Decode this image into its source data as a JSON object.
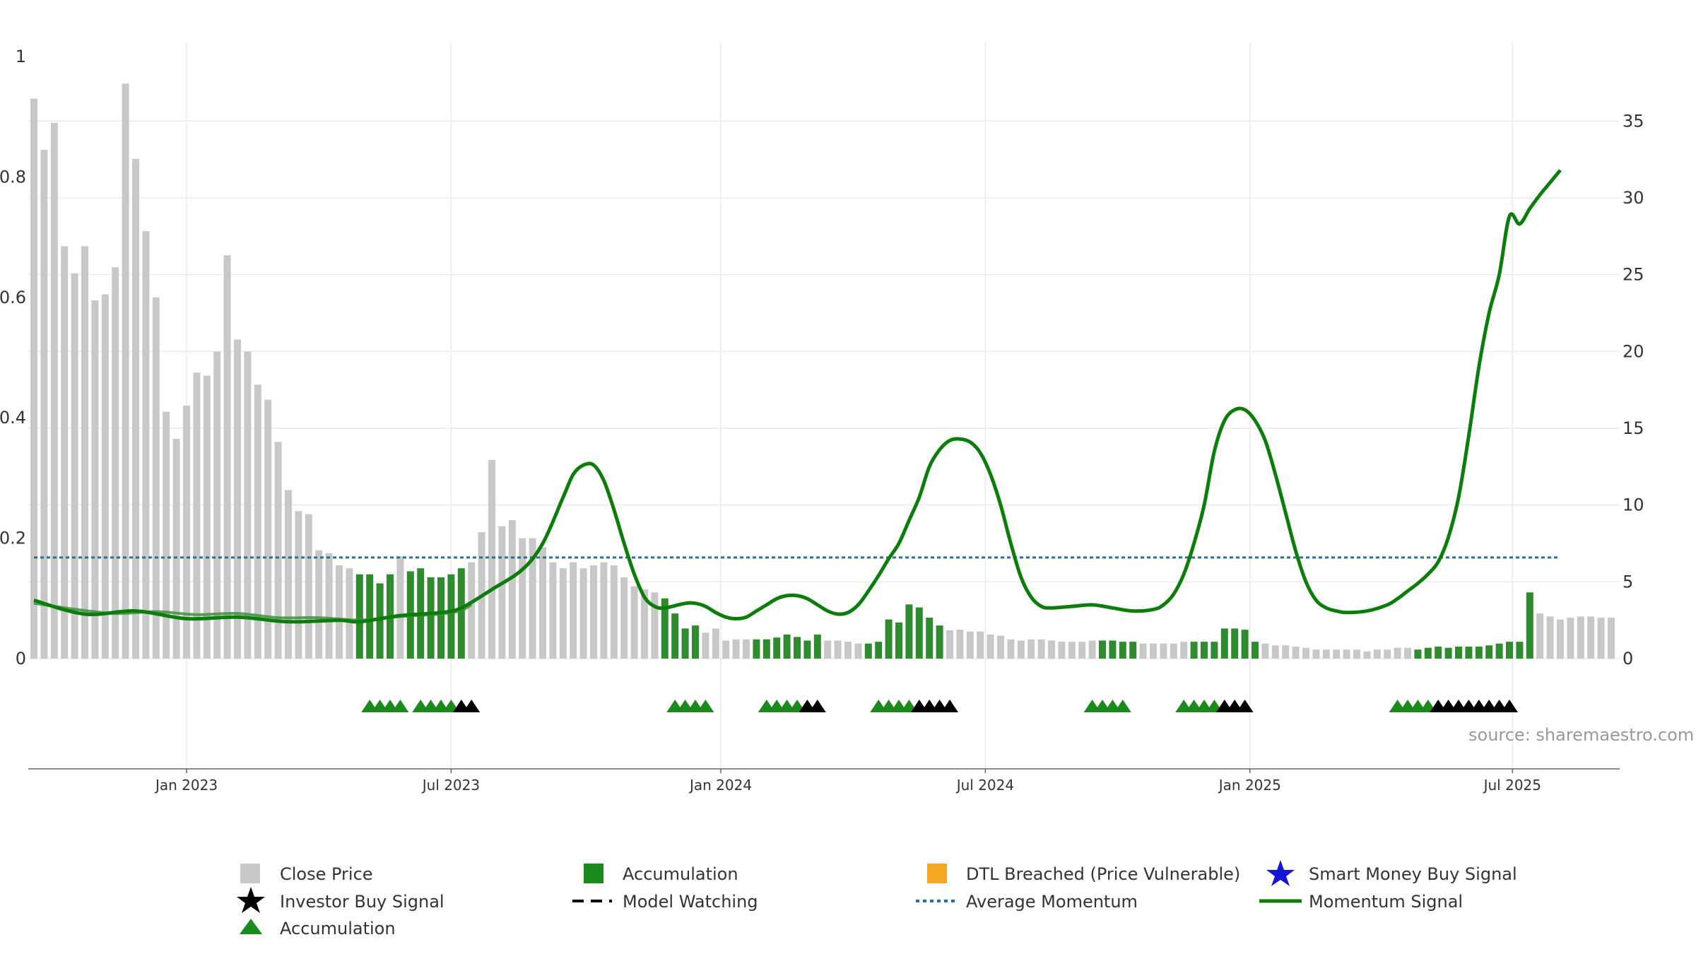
{
  "source_label": "source: sharemaestro.com",
  "colors": {
    "close": "#c8c8c8",
    "accumulation": "#2e8b2e",
    "momentum": "#0a7d0a",
    "avg_momentum": "#2b6f96",
    "investor_signal": "#000000",
    "dtl": "#f5a623",
    "smart_money": "#1515d8",
    "grid": "#ebebeb"
  },
  "legend": {
    "close_price": "Close Price",
    "accumulation": "Accumulation",
    "dtl_breached": "DTL Breached (Price Vulnerable)",
    "smart_money": "Smart Money Buy Signal",
    "investor_buy": "Investor Buy Signal",
    "model_watching": "Model Watching",
    "average_momentum": "Average Momentum",
    "momentum_signal": "Momentum Signal",
    "accumulation_marker": "Accumulation"
  },
  "chart_data": {
    "type": "bar",
    "x_axis": {
      "labels": [
        "Jan 2023",
        "Jul 2023",
        "Jan 2024",
        "Jul 2024",
        "Jan 2025",
        "Jul 2025"
      ],
      "label_weeks": [
        15,
        41,
        67.5,
        93.5,
        119.5,
        145.3
      ]
    },
    "y_left": {
      "ticks": [
        "0",
        "0.2",
        "0.4",
        "0.6",
        "0.8",
        "1"
      ],
      "range": [
        0,
        1
      ]
    },
    "y_right": {
      "ticks": [
        "0",
        "5",
        "10",
        "15",
        "20",
        "25",
        "30",
        "35"
      ],
      "range": [
        0,
        39.2
      ]
    },
    "close_price": {
      "values": [
        0.93,
        0.845,
        0.89,
        0.685,
        0.64,
        0.685,
        0.595,
        0.605,
        0.65,
        0.955,
        0.83,
        0.71,
        0.6,
        0.41,
        0.365,
        0.42,
        0.475,
        0.47,
        0.51,
        0.67,
        0.53,
        0.51,
        0.455,
        0.43,
        0.36,
        0.28,
        0.245,
        0.24,
        0.18,
        0.175,
        0.155,
        0.15,
        0.14,
        0.14,
        0.125,
        0.14,
        0.17,
        0.145,
        0.15,
        0.135,
        0.135,
        0.14,
        0.15,
        0.16,
        0.21,
        0.33,
        0.22,
        0.23,
        0.2,
        0.2,
        0.185,
        0.16,
        0.15,
        0.16,
        0.15,
        0.155,
        0.16,
        0.155,
        0.135,
        0.12,
        0.115,
        0.11,
        0.1,
        0.075,
        0.05,
        0.055,
        0.043,
        0.05,
        0.03,
        0.032,
        0.032,
        0.032,
        0.032,
        0.035,
        0.04,
        0.036,
        0.03,
        0.04,
        0.03,
        0.03,
        0.028,
        0.025,
        0.025,
        0.028,
        0.065,
        0.06,
        0.09,
        0.085,
        0.068,
        0.055,
        0.047,
        0.048,
        0.045,
        0.045,
        0.04,
        0.038,
        0.032,
        0.03,
        0.032,
        0.032,
        0.03,
        0.028,
        0.028,
        0.028,
        0.03,
        0.03,
        0.03,
        0.028,
        0.028,
        0.025,
        0.025,
        0.025,
        0.025,
        0.028,
        0.028,
        0.028,
        0.028,
        0.05,
        0.05,
        0.048,
        0.028,
        0.025,
        0.022,
        0.022,
        0.02,
        0.018,
        0.015,
        0.015,
        0.015,
        0.015,
        0.015,
        0.012,
        0.015,
        0.015,
        0.018,
        0.018,
        0.015,
        0.018,
        0.02,
        0.018,
        0.02,
        0.02,
        0.02,
        0.022,
        0.025,
        0.028,
        0.028,
        0.11,
        0.075,
        0.07,
        0.065,
        0.068,
        0.07,
        0.07,
        0.068,
        0.068
      ],
      "accumulation_ranges": [
        [
          32,
          35
        ],
        [
          37,
          42
        ],
        [
          62,
          65
        ],
        [
          71,
          77
        ],
        [
          82,
          89
        ],
        [
          105,
          108
        ],
        [
          114,
          120
        ],
        [
          136,
          147
        ]
      ]
    },
    "momentum": {
      "right_axis_points": [
        [
          0,
          3.8
        ],
        [
          5,
          2.9
        ],
        [
          10,
          3.1
        ],
        [
          15,
          2.6
        ],
        [
          20,
          2.7
        ],
        [
          25,
          2.4
        ],
        [
          30,
          2.5
        ],
        [
          32,
          2.4
        ],
        [
          36,
          2.8
        ],
        [
          40,
          3.0
        ],
        [
          42,
          3.3
        ],
        [
          45,
          4.5
        ],
        [
          48,
          5.8
        ],
        [
          50,
          7.5
        ],
        [
          52,
          10.5
        ],
        [
          53,
          12
        ],
        [
          54,
          12.6
        ],
        [
          55,
          12.6
        ],
        [
          56,
          11.6
        ],
        [
          57,
          9.7
        ],
        [
          58,
          7.5
        ],
        [
          59,
          5.5
        ],
        [
          60,
          4.0
        ],
        [
          61,
          3.4
        ],
        [
          62,
          3.3
        ],
        [
          64,
          3.6
        ],
        [
          65,
          3.6
        ],
        [
          66,
          3.4
        ],
        [
          67,
          3.0
        ],
        [
          68,
          2.7
        ],
        [
          69,
          2.6
        ],
        [
          70,
          2.7
        ],
        [
          71,
          3.1
        ],
        [
          72,
          3.5
        ],
        [
          73,
          3.9
        ],
        [
          74,
          4.1
        ],
        [
          75,
          4.1
        ],
        [
          76,
          3.9
        ],
        [
          77,
          3.5
        ],
        [
          78,
          3.1
        ],
        [
          79,
          2.9
        ],
        [
          80,
          3.0
        ],
        [
          81,
          3.5
        ],
        [
          82,
          4.4
        ],
        [
          83,
          5.4
        ],
        [
          84,
          6.5
        ],
        [
          85,
          7.5
        ],
        [
          86,
          9.0
        ],
        [
          87,
          10.5
        ],
        [
          88,
          12.5
        ],
        [
          89,
          13.6
        ],
        [
          90,
          14.2
        ],
        [
          91,
          14.3
        ],
        [
          92,
          14.1
        ],
        [
          93,
          13.4
        ],
        [
          94,
          12
        ],
        [
          95,
          10
        ],
        [
          96,
          7.5
        ],
        [
          97,
          5.3
        ],
        [
          98,
          4.0
        ],
        [
          99,
          3.4
        ],
        [
          100,
          3.3
        ],
        [
          102,
          3.4
        ],
        [
          104,
          3.5
        ],
        [
          106,
          3.3
        ],
        [
          108,
          3.1
        ],
        [
          110,
          3.2
        ],
        [
          111,
          3.5
        ],
        [
          112,
          4.2
        ],
        [
          113,
          5.5
        ],
        [
          114,
          7.5
        ],
        [
          115,
          10
        ],
        [
          116,
          13.5
        ],
        [
          117,
          15.5
        ],
        [
          118,
          16.2
        ],
        [
          119,
          16.2
        ],
        [
          120,
          15.5
        ],
        [
          121,
          14.2
        ],
        [
          122,
          12
        ],
        [
          123,
          9.5
        ],
        [
          124,
          7.0
        ],
        [
          125,
          5.0
        ],
        [
          126,
          3.8
        ],
        [
          127,
          3.3
        ],
        [
          128,
          3.1
        ],
        [
          129,
          3.0
        ],
        [
          131,
          3.1
        ],
        [
          133,
          3.5
        ],
        [
          134,
          3.9
        ],
        [
          135,
          4.4
        ],
        [
          136,
          4.9
        ],
        [
          137,
          5.5
        ],
        [
          138,
          6.3
        ],
        [
          139,
          7.9
        ],
        [
          140,
          10.5
        ],
        [
          141,
          14.5
        ],
        [
          142,
          19
        ],
        [
          143,
          22.5
        ],
        [
          144,
          25
        ],
        [
          145,
          28.8
        ],
        [
          146,
          28.3
        ],
        [
          147,
          29.3
        ],
        [
          148,
          30.2
        ],
        [
          149,
          31
        ],
        [
          150,
          31.8
        ]
      ],
      "average_left_axis": 0.168,
      "early_average_points": [
        [
          0,
          0.092
        ],
        [
          4,
          0.082
        ],
        [
          8,
          0.075
        ],
        [
          12,
          0.078
        ],
        [
          16,
          0.073
        ],
        [
          20,
          0.075
        ],
        [
          24,
          0.068
        ],
        [
          28,
          0.068
        ],
        [
          32,
          0.064
        ],
        [
          36,
          0.07
        ],
        [
          40,
          0.074
        ],
        [
          42,
          0.08
        ],
        [
          43,
          0.09
        ]
      ]
    },
    "accumulation_markers": [
      33,
      34,
      35,
      36,
      38,
      39,
      40,
      41,
      63,
      64,
      65,
      66,
      72,
      73,
      74,
      75,
      83,
      84,
      85,
      86,
      104,
      105,
      106,
      107,
      113,
      114,
      115,
      116,
      134,
      135,
      136,
      137
    ],
    "investor_buy_markers": [
      42,
      43,
      76,
      77,
      87,
      88,
      89,
      90,
      117,
      118,
      119,
      138,
      139,
      140,
      141,
      142,
      143,
      144,
      145
    ]
  }
}
